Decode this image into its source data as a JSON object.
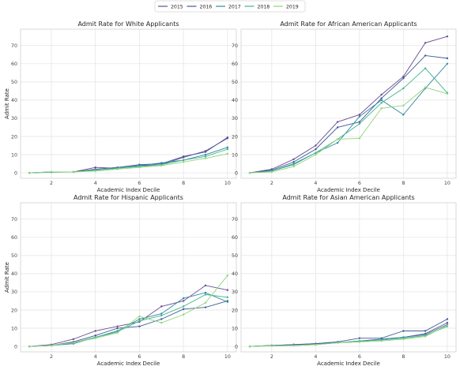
{
  "legend": {
    "items": [
      {
        "label": "2015",
        "color": "#6a4b92"
      },
      {
        "label": "2016",
        "color": "#3f5b97"
      },
      {
        "label": "2017",
        "color": "#3387a0"
      },
      {
        "label": "2018",
        "color": "#3fb58d"
      },
      {
        "label": "2019",
        "color": "#8fd57a"
      }
    ],
    "placement": "top-center"
  },
  "chart_data": [
    {
      "type": "line",
      "title": "Admit Rate for White Applicants",
      "xlabel": "Academic Index Decile",
      "ylabel": "Admit Rate",
      "x": [
        1,
        2,
        3,
        4,
        5,
        6,
        7,
        8,
        9,
        10
      ],
      "xticks": [
        "2",
        "4",
        "6",
        "8",
        "10"
      ],
      "yticks": [
        "0",
        "10",
        "20",
        "30",
        "40",
        "50",
        "60",
        "70"
      ],
      "xlim": [
        0.6,
        10.4
      ],
      "ylim": [
        -3,
        79
      ],
      "grid": true,
      "series": [
        {
          "name": "2015",
          "values": [
            0,
            0.5,
            0.5,
            3,
            2.5,
            4,
            4.5,
            8.5,
            12,
            19
          ]
        },
        {
          "name": "2016",
          "values": [
            0,
            0.5,
            0.5,
            2,
            3,
            4.5,
            5,
            9,
            11.5,
            19.5
          ]
        },
        {
          "name": "2017",
          "values": [
            0,
            0.3,
            0.5,
            1.5,
            2.5,
            4,
            5.5,
            7,
            10,
            14
          ]
        },
        {
          "name": "2018",
          "values": [
            0,
            0.5,
            0.5,
            1.5,
            2.5,
            3.5,
            4.5,
            7,
            9,
            13
          ]
        },
        {
          "name": "2019",
          "values": [
            0,
            0.5,
            0.5,
            1,
            2,
            3,
            4,
            6,
            8,
            10.5
          ]
        }
      ]
    },
    {
      "type": "line",
      "title": "Admit Rate for African American Applicants",
      "xlabel": "Academic Index Decile",
      "ylabel": "",
      "x": [
        1,
        2,
        3,
        4,
        5,
        6,
        7,
        8,
        9,
        10
      ],
      "xticks": [
        "2",
        "4",
        "6",
        "8",
        "10"
      ],
      "yticks": [
        "0",
        "10",
        "20",
        "30",
        "40",
        "50",
        "60",
        "70"
      ],
      "xlim": [
        0.6,
        10.4
      ],
      "ylim": [
        -3,
        79
      ],
      "grid": true,
      "series": [
        {
          "name": "2015",
          "values": [
            0,
            2,
            7.5,
            15,
            28,
            32,
            43,
            53,
            71.5,
            75
          ]
        },
        {
          "name": "2016",
          "values": [
            0,
            1.5,
            6,
            13,
            25,
            28,
            41,
            52,
            64.5,
            63
          ]
        },
        {
          "name": "2017",
          "values": [
            0,
            1,
            5,
            11,
            16.5,
            31,
            40,
            32,
            46.5,
            60
          ]
        },
        {
          "name": "2018",
          "values": [
            0,
            1,
            4.5,
            11,
            18.5,
            27,
            38.5,
            46.5,
            57.5,
            44
          ]
        },
        {
          "name": "2019",
          "values": [
            0,
            0.5,
            3.5,
            10,
            18.5,
            19,
            35.5,
            37,
            47,
            43.5
          ]
        }
      ]
    },
    {
      "type": "line",
      "title": "Admit Rate for Hispanic Applicants",
      "xlabel": "Academic Index Decile",
      "ylabel": "Admit Rate",
      "x": [
        1,
        2,
        3,
        4,
        5,
        6,
        7,
        8,
        9,
        10
      ],
      "xticks": [
        "2",
        "4",
        "6",
        "8",
        "10"
      ],
      "yticks": [
        "0",
        "10",
        "20",
        "30",
        "40",
        "50",
        "60",
        "70"
      ],
      "xlim": [
        0.6,
        10.4
      ],
      "ylim": [
        -3,
        79
      ],
      "grid": true,
      "series": [
        {
          "name": "2015",
          "values": [
            0,
            1,
            4,
            8.5,
            11,
            13.5,
            22,
            25,
            33.5,
            31
          ]
        },
        {
          "name": "2016",
          "values": [
            0,
            0.5,
            2.5,
            6,
            10,
            11,
            15,
            20.5,
            21.5,
            25
          ]
        },
        {
          "name": "2017",
          "values": [
            0,
            0.5,
            1.5,
            5,
            8.5,
            15,
            18,
            26.5,
            29.5,
            24.5
          ]
        },
        {
          "name": "2018",
          "values": [
            0,
            0.5,
            2,
            5,
            8,
            14,
            17,
            22,
            28.5,
            27
          ]
        },
        {
          "name": "2019",
          "values": [
            0,
            0.5,
            2,
            4.5,
            7.5,
            16.5,
            13,
            17.5,
            24,
            39
          ]
        }
      ]
    },
    {
      "type": "line",
      "title": "Admit Rate for Asian American Applicants",
      "xlabel": "Academic Index Decile",
      "ylabel": "",
      "x": [
        1,
        2,
        3,
        4,
        5,
        6,
        7,
        8,
        9,
        10
      ],
      "xticks": [
        "2",
        "4",
        "6",
        "8",
        "10"
      ],
      "yticks": [
        "0",
        "10",
        "20",
        "30",
        "40",
        "50",
        "60",
        "70"
      ],
      "xlim": [
        0.6,
        10.4
      ],
      "ylim": [
        -3,
        79
      ],
      "grid": true,
      "series": [
        {
          "name": "2015",
          "values": [
            0,
            0.5,
            1,
            1.5,
            2,
            3,
            4,
            5,
            7,
            13
          ]
        },
        {
          "name": "2016",
          "values": [
            0,
            0.5,
            1,
            1.5,
            2.5,
            4.5,
            4.5,
            8.5,
            8.5,
            15
          ]
        },
        {
          "name": "2017",
          "values": [
            0,
            0.5,
            0.5,
            1,
            2,
            2.5,
            4,
            5,
            6.5,
            12
          ]
        },
        {
          "name": "2018",
          "values": [
            0,
            0.3,
            0.5,
            1,
            2,
            3,
            3.5,
            4.5,
            6,
            11
          ]
        },
        {
          "name": "2019",
          "values": [
            0,
            0.3,
            0.5,
            1,
            2,
            2.5,
            3,
            4,
            5.5,
            11.5
          ]
        }
      ]
    }
  ]
}
